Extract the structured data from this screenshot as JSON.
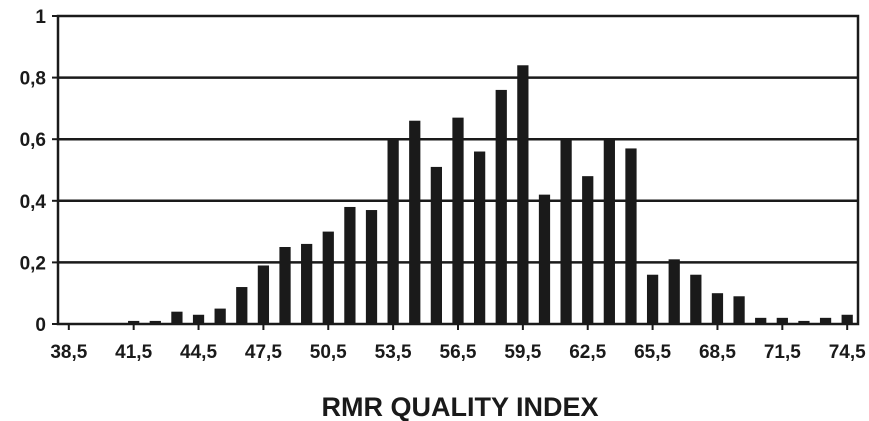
{
  "chart_data": {
    "type": "bar",
    "xlabel": "RMR QUALITY INDEX",
    "ylabel": "",
    "ylim": [
      0,
      1
    ],
    "y_ticks": [
      "0",
      "0,2",
      "0,4",
      "0,6",
      "0,8",
      "1"
    ],
    "y_tick_values": [
      0,
      0.2,
      0.4,
      0.6,
      0.8,
      1
    ],
    "x_tick_labels": [
      "38,5",
      "41,5",
      "44,5",
      "47,5",
      "50,5",
      "53,5",
      "56,5",
      "59,5",
      "62,5",
      "65,5",
      "68,5",
      "71,5",
      "74,5"
    ],
    "categories": [
      "38,5",
      "39,5",
      "40,5",
      "41,5",
      "42,5",
      "43,5",
      "44,5",
      "45,5",
      "46,5",
      "47,5",
      "48,5",
      "49,5",
      "50,5",
      "51,5",
      "52,5",
      "53,5",
      "54,5",
      "55,5",
      "56,5",
      "57,5",
      "58,5",
      "59,5",
      "60,5",
      "61,5",
      "62,5",
      "63,5",
      "64,5",
      "65,5",
      "66,5",
      "67,5",
      "68,5",
      "69,5",
      "70,5",
      "71,5",
      "72,5",
      "73,5",
      "74,5"
    ],
    "values": [
      0,
      0,
      0,
      0.01,
      0.01,
      0.04,
      0.03,
      0.05,
      0.12,
      0.19,
      0.25,
      0.26,
      0.3,
      0.38,
      0.37,
      0.6,
      0.66,
      0.51,
      0.67,
      0.56,
      0.76,
      0.84,
      0.42,
      0.6,
      0.48,
      0.6,
      0.57,
      0.16,
      0.21,
      0.16,
      0.1,
      0.09,
      0.02,
      0.02,
      0.01,
      0.02,
      0.03
    ],
    "grid": true,
    "bar_color": "#1a1a1a",
    "legend": "none"
  }
}
